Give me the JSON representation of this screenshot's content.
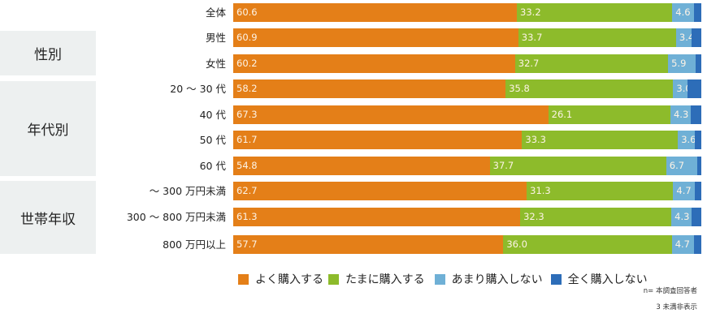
{
  "chart_data": {
    "type": "bar",
    "orientation": "horizontal",
    "stacked": true,
    "percent": true,
    "title": "",
    "xlabel": "",
    "ylabel": "",
    "xlim": [
      0,
      100
    ],
    "groups": [
      {
        "label": "",
        "categories": [
          "全体"
        ]
      },
      {
        "label": "性別",
        "categories": [
          "男性",
          "女性"
        ]
      },
      {
        "label": "年代別",
        "categories": [
          "20 〜 30 代",
          "40 代",
          "50 代",
          "60 代"
        ]
      },
      {
        "label": "世帯年収",
        "categories": [
          "〜 300 万円未満",
          "300 〜 800 万円未満",
          "800 万円以上"
        ]
      }
    ],
    "categories": [
      "全体",
      "男性",
      "女性",
      "20 〜 30 代",
      "40 代",
      "50 代",
      "60 代",
      "〜 300 万円未満",
      "300 〜 800 万円未満",
      "800 万円以上"
    ],
    "series": [
      {
        "name": "よく購入する",
        "color": "#E47F18",
        "values": [
          60.6,
          60.9,
          60.2,
          58.2,
          67.3,
          61.7,
          54.8,
          62.7,
          61.3,
          57.7
        ]
      },
      {
        "name": "たまに購入する",
        "color": "#8DBB2B",
        "values": [
          33.2,
          33.7,
          32.7,
          35.8,
          26.1,
          33.3,
          37.7,
          31.3,
          32.3,
          36.0
        ]
      },
      {
        "name": "あまり購入しない",
        "color": "#6FB0D6",
        "values": [
          4.6,
          3.4,
          5.9,
          3.0,
          4.3,
          3.6,
          6.7,
          4.7,
          4.3,
          4.7
        ]
      },
      {
        "name": "全く購入しない",
        "color": "#2D6DB8",
        "values": [
          1.6,
          2.0,
          1.2,
          3.0,
          2.3,
          1.4,
          0.8,
          1.3,
          2.1,
          1.6
        ]
      }
    ],
    "legend_position": "bottom",
    "grid": false,
    "annotations": [
      "n= 本調査回答者",
      "3 未満非表示"
    ]
  },
  "labels": {
    "group_gender": "性別",
    "group_age": "年代別",
    "group_income": "世帯年収",
    "rows": [
      "全体",
      "男性",
      "女性",
      "20 〜 30 代",
      "40 代",
      "50 代",
      "60 代",
      "〜 300 万円未満",
      "300 〜 800 万円未満",
      "800 万円以上"
    ]
  },
  "bars": [
    {
      "v": [
        "60.6",
        "33.2",
        "4.6",
        ""
      ]
    },
    {
      "v": [
        "60.9",
        "33.7",
        "3.4",
        ""
      ]
    },
    {
      "v": [
        "60.2",
        "32.7",
        "5.9",
        ""
      ]
    },
    {
      "v": [
        "58.2",
        "35.8",
        "3.0",
        ""
      ]
    },
    {
      "v": [
        "67.3",
        "26.1",
        "4.3",
        ""
      ]
    },
    {
      "v": [
        "61.7",
        "33.3",
        "3.6",
        ""
      ]
    },
    {
      "v": [
        "54.8",
        "37.7",
        "6.7",
        ""
      ]
    },
    {
      "v": [
        "62.7",
        "31.3",
        "4.7",
        ""
      ]
    },
    {
      "v": [
        "61.3",
        "32.3",
        "4.3",
        ""
      ]
    },
    {
      "v": [
        "57.7",
        "36.0",
        "4.7",
        ""
      ]
    }
  ],
  "legend": {
    "items": [
      "よく購入する",
      "たまに購入する",
      "あまり購入しない",
      "全く購入しない"
    ]
  },
  "notes": {
    "sample": "n= 本調査回答者",
    "hidden": "3 未満非表示"
  }
}
